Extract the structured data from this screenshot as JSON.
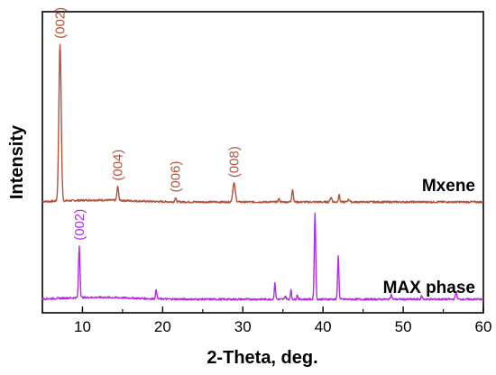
{
  "chart_data": {
    "type": "line",
    "xlabel": "2-Theta, deg.",
    "ylabel": "Intensity",
    "xlim": [
      5,
      60
    ],
    "x_ticks": [
      10,
      20,
      30,
      40,
      50,
      60
    ],
    "x_tick_labels": [
      "10",
      "20",
      "30",
      "40",
      "50",
      "60"
    ],
    "y_ticks_shown": false,
    "grid": false,
    "legend": "none",
    "series": [
      {
        "name": "Mxene",
        "color": "#b5523b",
        "baseline": 0.62,
        "peaks": [
          {
            "x": 7.2,
            "height": 1.0,
            "width": 0.32,
            "label": "(002)"
          },
          {
            "x": 14.4,
            "height": 0.09,
            "width": 0.22,
            "label": "(004)"
          },
          {
            "x": 21.6,
            "height": 0.025,
            "width": 0.2,
            "label": "(006)"
          },
          {
            "x": 28.9,
            "height": 0.12,
            "width": 0.35,
            "label": "(008)"
          },
          {
            "x": 34.5,
            "height": 0.02,
            "width": 0.2
          },
          {
            "x": 36.2,
            "height": 0.08,
            "width": 0.22
          },
          {
            "x": 41.0,
            "height": 0.03,
            "width": 0.25
          },
          {
            "x": 42.0,
            "height": 0.05,
            "width": 0.18
          },
          {
            "x": 43.2,
            "height": 0.015,
            "width": 0.3
          }
        ]
      },
      {
        "name": "MAX phase",
        "color": "#b12ee6",
        "baseline": 0.0,
        "peaks": [
          {
            "x": 9.6,
            "height": 0.33,
            "width": 0.2,
            "label": "(002)"
          },
          {
            "x": 19.2,
            "height": 0.06,
            "width": 0.18
          },
          {
            "x": 34.0,
            "height": 0.1,
            "width": 0.18
          },
          {
            "x": 35.3,
            "height": 0.02,
            "width": 0.2
          },
          {
            "x": 36.0,
            "height": 0.06,
            "width": 0.16
          },
          {
            "x": 36.8,
            "height": 0.03,
            "width": 0.16
          },
          {
            "x": 39.0,
            "height": 0.55,
            "width": 0.2
          },
          {
            "x": 41.9,
            "height": 0.28,
            "width": 0.18
          },
          {
            "x": 48.5,
            "height": 0.03,
            "width": 0.2
          },
          {
            "x": 52.3,
            "height": 0.02,
            "width": 0.2
          },
          {
            "x": 56.6,
            "height": 0.05,
            "width": 0.2
          }
        ]
      }
    ]
  }
}
